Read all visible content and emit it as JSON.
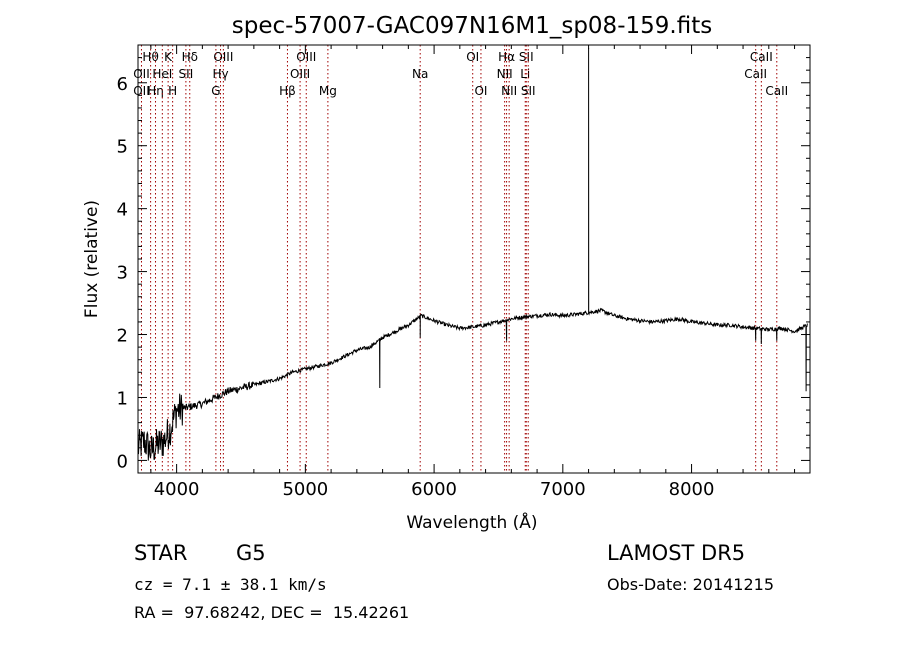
{
  "chart_data": {
    "type": "line",
    "title": "spec-57007-GAC097N16M1_sp08-159.fits",
    "xlabel": "Wavelength (Å)",
    "ylabel": "Flux (relative)",
    "xlim": [
      3700,
      8920
    ],
    "ylim": [
      -0.2,
      6.6
    ],
    "x_ticks": [
      4000,
      5000,
      6000,
      7000,
      8000
    ],
    "y_ticks": [
      0,
      1,
      2,
      3,
      4,
      5,
      6
    ],
    "grid": false,
    "series": [
      {
        "color": "#000000",
        "anchor_points": [
          [
            3700,
            0.2
          ],
          [
            3750,
            0.3
          ],
          [
            3800,
            0.15
          ],
          [
            3850,
            0.25
          ],
          [
            3900,
            0.3
          ],
          [
            3950,
            0.5
          ],
          [
            4000,
            0.8
          ],
          [
            4100,
            0.85
          ],
          [
            4200,
            0.9
          ],
          [
            4300,
            1.0
          ],
          [
            4400,
            1.1
          ],
          [
            4500,
            1.15
          ],
          [
            4600,
            1.2
          ],
          [
            4700,
            1.25
          ],
          [
            4800,
            1.3
          ],
          [
            4900,
            1.4
          ],
          [
            5000,
            1.45
          ],
          [
            5100,
            1.5
          ],
          [
            5200,
            1.55
          ],
          [
            5300,
            1.65
          ],
          [
            5400,
            1.75
          ],
          [
            5500,
            1.8
          ],
          [
            5600,
            1.95
          ],
          [
            5700,
            2.05
          ],
          [
            5800,
            2.15
          ],
          [
            5900,
            2.3
          ],
          [
            6000,
            2.22
          ],
          [
            6100,
            2.15
          ],
          [
            6200,
            2.1
          ],
          [
            6300,
            2.12
          ],
          [
            6400,
            2.15
          ],
          [
            6500,
            2.2
          ],
          [
            6600,
            2.25
          ],
          [
            6700,
            2.28
          ],
          [
            6800,
            2.3
          ],
          [
            6900,
            2.32
          ],
          [
            7000,
            2.3
          ],
          [
            7100,
            2.32
          ],
          [
            7200,
            2.35
          ],
          [
            7300,
            2.38
          ],
          [
            7400,
            2.3
          ],
          [
            7500,
            2.25
          ],
          [
            7600,
            2.22
          ],
          [
            7700,
            2.2
          ],
          [
            7800,
            2.22
          ],
          [
            7900,
            2.25
          ],
          [
            8000,
            2.2
          ],
          [
            8100,
            2.18
          ],
          [
            8200,
            2.15
          ],
          [
            8300,
            2.15
          ],
          [
            8400,
            2.12
          ],
          [
            8500,
            2.1
          ],
          [
            8600,
            2.08
          ],
          [
            8700,
            2.1
          ],
          [
            8800,
            2.05
          ],
          [
            8900,
            2.15
          ]
        ],
        "features": [
          {
            "x": 5578,
            "y": 1.15
          },
          {
            "x": 5892,
            "y": 1.95
          },
          {
            "x": 6563,
            "y": 1.9
          },
          {
            "x": 7200,
            "y": 6.55
          },
          {
            "x": 8498,
            "y": 1.9
          },
          {
            "x": 8542,
            "y": 1.85
          },
          {
            "x": 8662,
            "y": 1.9
          },
          {
            "x": 8890,
            "y": 1.1
          }
        ]
      }
    ],
    "spectral_lines": [
      {
        "label": "Hθ",
        "x": 3798,
        "row": 0
      },
      {
        "label": "OII",
        "x": 3727,
        "row": 1
      },
      {
        "label": "OII",
        "x": 3727,
        "row": 2
      },
      {
        "label": "Hη",
        "x": 3836,
        "row": 2
      },
      {
        "label": "K",
        "x": 3934,
        "row": 0
      },
      {
        "label": "HeI",
        "x": 3889,
        "row": 1
      },
      {
        "label": "H",
        "x": 3969,
        "row": 2
      },
      {
        "label": "Hδ",
        "x": 4102,
        "row": 0
      },
      {
        "label": "SII",
        "x": 4072,
        "row": 1
      },
      {
        "label": "OIII",
        "x": 4363,
        "row": 0
      },
      {
        "label": "Hγ",
        "x": 4341,
        "row": 1
      },
      {
        "label": "G",
        "x": 4305,
        "row": 2
      },
      {
        "label": "OIII",
        "x": 5007,
        "row": 0
      },
      {
        "label": "OIII",
        "x": 4959,
        "row": 1
      },
      {
        "label": "Hβ",
        "x": 4861,
        "row": 2
      },
      {
        "label": "Mg",
        "x": 5175,
        "row": 2
      },
      {
        "label": "Na",
        "x": 5892,
        "row": 1
      },
      {
        "label": "OI",
        "x": 6300,
        "row": 0
      },
      {
        "label": "OI",
        "x": 6364,
        "row": 2
      },
      {
        "label": "Hα",
        "x": 6563,
        "row": 0
      },
      {
        "label": "SII",
        "x": 6716,
        "row": 0
      },
      {
        "label": "NII",
        "x": 6548,
        "row": 1
      },
      {
        "label": "Li",
        "x": 6708,
        "row": 1
      },
      {
        "label": "NII",
        "x": 6583,
        "row": 2
      },
      {
        "label": "SII",
        "x": 6731,
        "row": 2
      },
      {
        "label": "CaII",
        "x": 8542,
        "row": 0
      },
      {
        "label": "CaII",
        "x": 8498,
        "row": 1
      },
      {
        "label": "CaII",
        "x": 8662,
        "row": 2
      }
    ]
  },
  "info": {
    "object_type": "STAR",
    "subclass": "G5",
    "cz_line": "cz = 7.1 ± 38.1 km/s",
    "radec_line": "RA =  97.68242, DEC =  15.42261",
    "survey": "LAMOST DR5",
    "obs_date_line": "Obs-Date: 20141215",
    "line_color": "#a00000"
  }
}
